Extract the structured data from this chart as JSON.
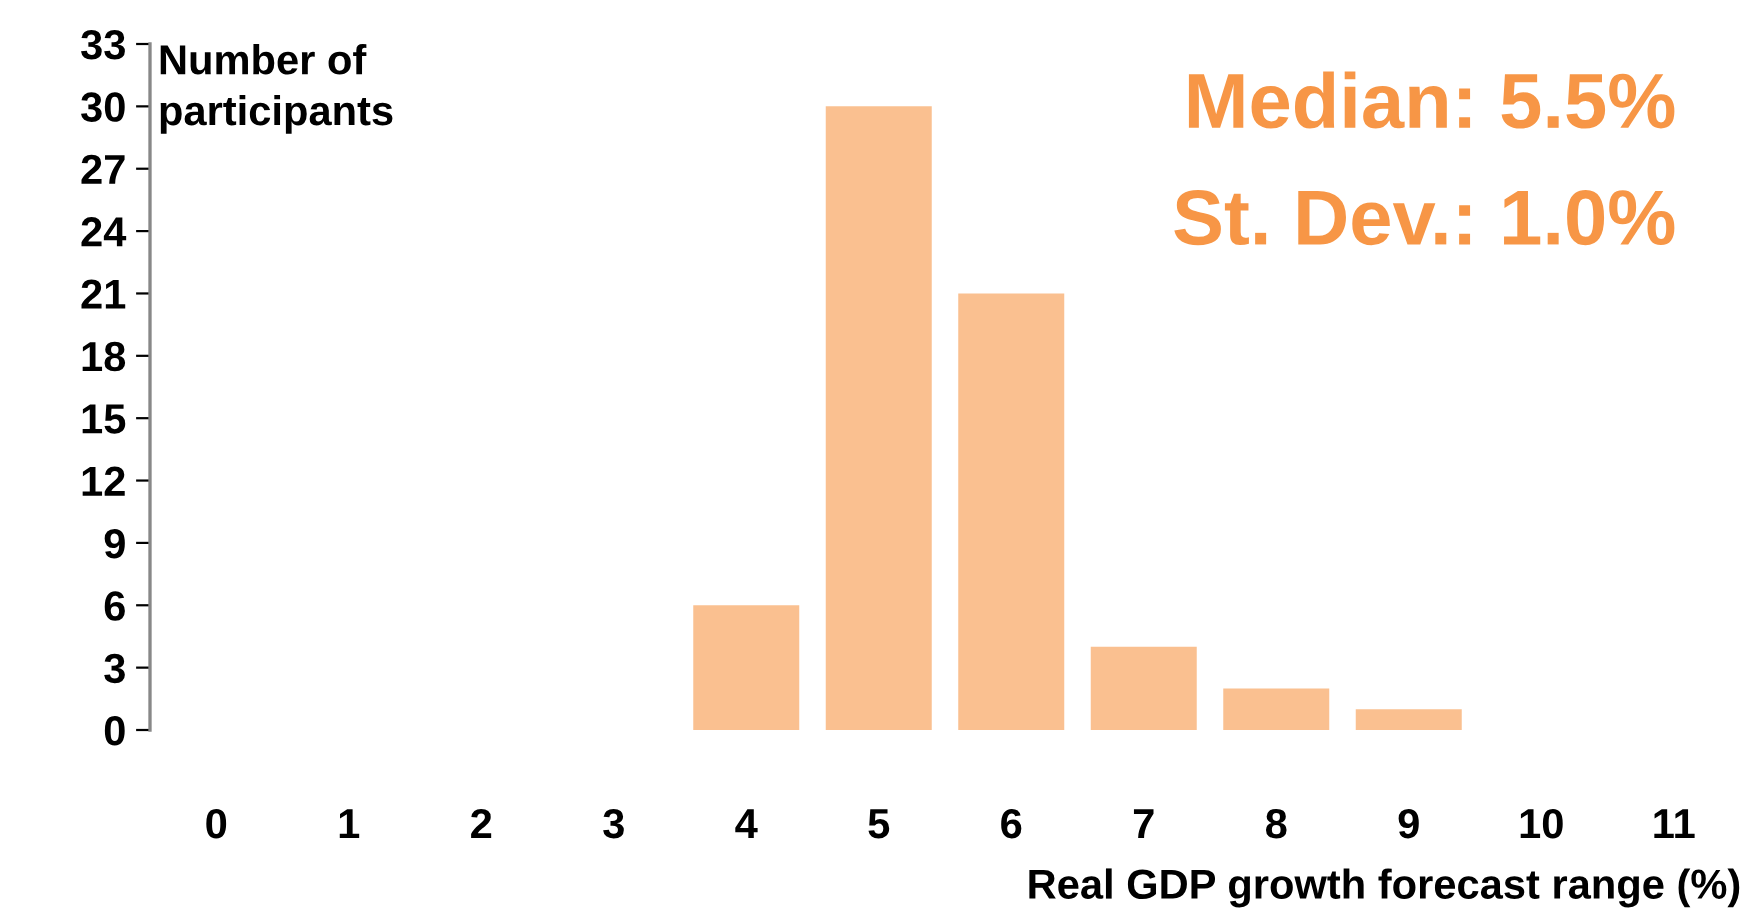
{
  "chart_data": {
    "type": "bar",
    "categories": [
      "0",
      "1",
      "2",
      "3",
      "4",
      "5",
      "6",
      "7",
      "8",
      "9",
      "10",
      "11"
    ],
    "series": [
      {
        "color": "#fac090",
        "values": [
          0,
          0,
          0,
          0,
          6,
          30,
          21,
          4,
          2,
          1,
          0,
          0
        ]
      }
    ],
    "ylabel": "Number of\nparticipants",
    "xlabel": "Real GDP growth forecast range (%)",
    "annotations": [
      "Median: 5.5%",
      "St. Dev.: 1.0%"
    ],
    "ylim": [
      0,
      33
    ],
    "yticks": [
      0,
      3,
      6,
      9,
      12,
      15,
      18,
      21,
      24,
      27,
      30,
      33
    ],
    "grid": false,
    "legend": false
  }
}
